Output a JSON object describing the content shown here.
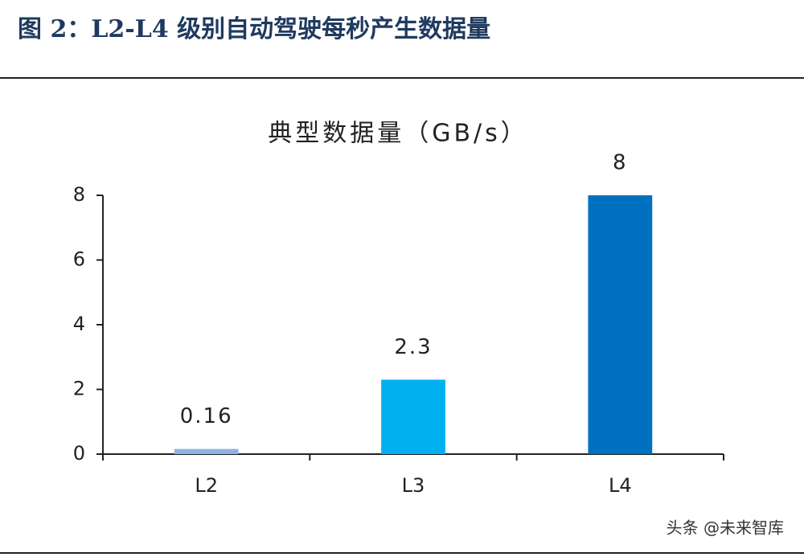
{
  "caption": "图 2：L2-L4 级别自动驾驶每秒产生数据量",
  "watermark": "头条 @未来智库",
  "chart_data": {
    "type": "bar",
    "title": "典型数据量（GB/s）",
    "categories": [
      "L2",
      "L3",
      "L4"
    ],
    "values": [
      0.16,
      2.3,
      8
    ],
    "colors": [
      "#8fb4e3",
      "#00b0f0",
      "#0070c0"
    ],
    "ylim": [
      0,
      8
    ],
    "yticks": [
      0,
      2,
      4,
      6,
      8
    ],
    "grid": false
  }
}
